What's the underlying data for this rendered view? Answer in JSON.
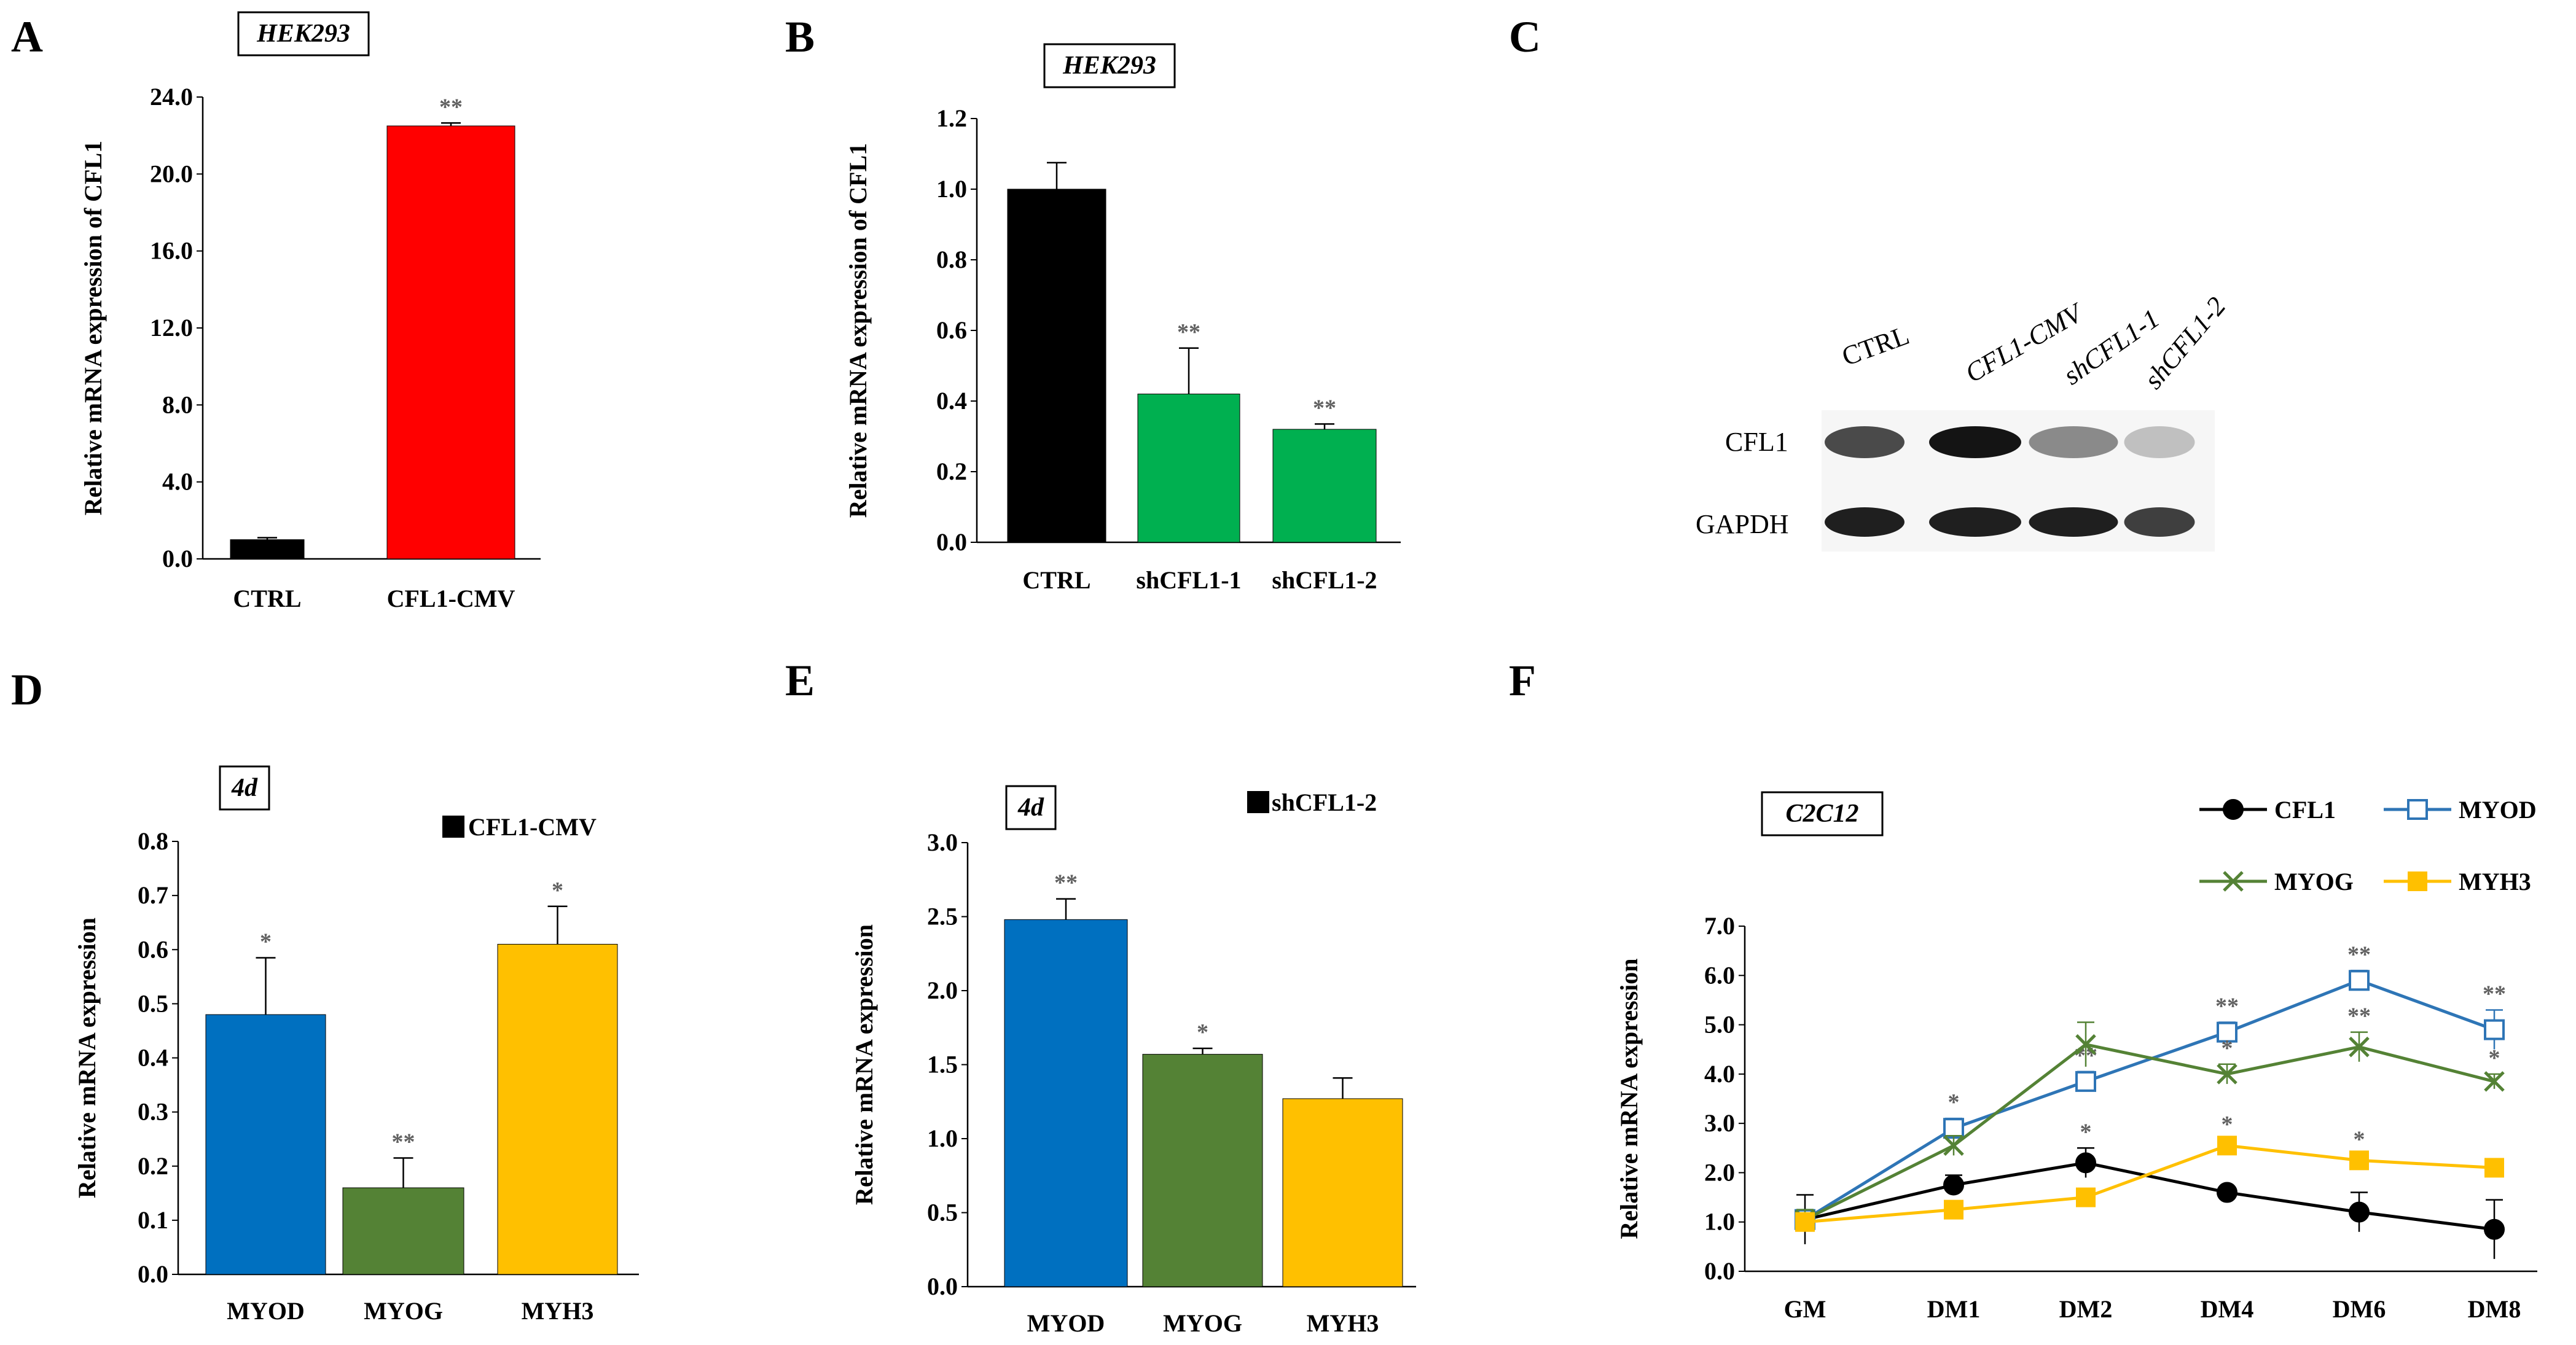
{
  "panels": {
    "A": {
      "letter": "A",
      "box_label": "HEK293"
    },
    "B": {
      "letter": "B",
      "box_label": "HEK293"
    },
    "C": {
      "letter": "C"
    },
    "D": {
      "letter": "D",
      "box_label": "4d",
      "legend": "CFL1-CMV"
    },
    "E": {
      "letter": "E",
      "box_label": "4d",
      "legend": "shCFL1-2"
    },
    "F": {
      "letter": "F",
      "box_label": "C2C12"
    }
  },
  "western_blot": {
    "lanes": [
      "CTRL",
      "CFL1-CMV",
      "shCFL1-1",
      "shCFL1-2"
    ],
    "rows": [
      "CFL1",
      "GAPDH"
    ],
    "cfl1_band_intensity": [
      0.75,
      1.0,
      0.45,
      0.2
    ],
    "gapdh_band_intensity": [
      0.95,
      0.95,
      0.95,
      0.8
    ]
  },
  "chart_data": [
    {
      "id": "A",
      "type": "bar",
      "title": "HEK293",
      "categories": [
        "CTRL",
        "CFL1-CMV"
      ],
      "values": [
        1.0,
        22.5
      ],
      "errors": [
        0.1,
        0.15
      ],
      "significance": [
        "",
        "**"
      ],
      "colors": [
        "#000000",
        "#ff0000"
      ],
      "ylabel": "Relative mRNA expression of CFL1",
      "ylim": [
        0,
        24
      ],
      "yticks": [
        0,
        4,
        8,
        12,
        16,
        20,
        24
      ],
      "ytick_labels": [
        "0.0",
        "4.0",
        "8.0",
        "12.0",
        "16.0",
        "20.0",
        "24.0"
      ]
    },
    {
      "id": "B",
      "type": "bar",
      "title": "HEK293",
      "categories": [
        "CTRL",
        "shCFL1-1",
        "shCFL1-2"
      ],
      "values": [
        1.0,
        0.42,
        0.32
      ],
      "errors": [
        0.075,
        0.13,
        0.015
      ],
      "significance": [
        "",
        "**",
        "**"
      ],
      "colors": [
        "#000000",
        "#00b050",
        "#00b050"
      ],
      "ylabel": "Relative mRNA expression of CFL1",
      "ylim": [
        0,
        1.2
      ],
      "yticks": [
        0,
        0.2,
        0.4,
        0.6,
        0.8,
        1.0,
        1.2
      ],
      "ytick_labels": [
        "0.0",
        "0.2",
        "0.4",
        "0.6",
        "0.8",
        "1.0",
        "1.2"
      ]
    },
    {
      "id": "D",
      "type": "bar",
      "title": "4d",
      "legend": [
        "CFL1-CMV"
      ],
      "categories": [
        "MYOD",
        "MYOG",
        "MYH3"
      ],
      "values": [
        0.48,
        0.16,
        0.61
      ],
      "errors": [
        0.105,
        0.055,
        0.07
      ],
      "significance": [
        "*",
        "**",
        "*"
      ],
      "colors": [
        "#0070c0",
        "#548235",
        "#ffc000"
      ],
      "ylabel": "Relative mRNA expression",
      "ylim": [
        0,
        0.8
      ],
      "yticks": [
        0,
        0.1,
        0.2,
        0.3,
        0.4,
        0.5,
        0.6,
        0.7,
        0.8
      ],
      "ytick_labels": [
        "0.0",
        "0.1",
        "0.2",
        "0.3",
        "0.4",
        "0.5",
        "0.6",
        "0.7",
        "0.8"
      ]
    },
    {
      "id": "E",
      "type": "bar",
      "title": "4d",
      "legend": [
        "shCFL1-2"
      ],
      "categories": [
        "MYOD",
        "MYOG",
        "MYH3"
      ],
      "values": [
        2.48,
        1.57,
        1.27
      ],
      "errors": [
        0.14,
        0.04,
        0.14
      ],
      "significance": [
        "**",
        "*",
        ""
      ],
      "colors": [
        "#0070c0",
        "#548235",
        "#ffc000"
      ],
      "ylabel": "Relative mRNA expression",
      "ylim": [
        0,
        3.0
      ],
      "yticks": [
        0,
        0.5,
        1.0,
        1.5,
        2.0,
        2.5,
        3.0
      ],
      "ytick_labels": [
        "0.0",
        "0.5",
        "1.0",
        "1.5",
        "2.0",
        "2.5",
        "3.0"
      ]
    },
    {
      "id": "F",
      "type": "line",
      "title": "C2C12",
      "x": [
        "GM",
        "DM1",
        "DM2",
        "DM4",
        "DM6",
        "DM8"
      ],
      "ylabel": "Relative mRNA expression",
      "ylim": [
        0,
        7
      ],
      "yticks": [
        0,
        1,
        2,
        3,
        4,
        5,
        6,
        7
      ],
      "ytick_labels": [
        "0.0",
        "1.0",
        "2.0",
        "3.0",
        "4.0",
        "5.0",
        "6.0",
        "7.0"
      ],
      "series": [
        {
          "name": "CFL1",
          "color": "#000000",
          "marker": "circle",
          "values": [
            1.05,
            1.75,
            2.2,
            1.6,
            1.2,
            0.85
          ],
          "errors": [
            0.5,
            0.2,
            0.3,
            0.1,
            0.4,
            0.6
          ],
          "significance": [
            "",
            "",
            "*",
            "",
            "",
            ""
          ]
        },
        {
          "name": "MYOD",
          "color": "#2e75b6",
          "marker": "open-square",
          "values": [
            1.05,
            2.9,
            3.85,
            4.85,
            5.9,
            4.9
          ],
          "errors": [
            0.2,
            0.2,
            0.2,
            0.2,
            0.2,
            0.4
          ],
          "significance": [
            "",
            "*",
            "**",
            "**",
            "**",
            "**"
          ]
        },
        {
          "name": "MYOG",
          "color": "#548235",
          "marker": "x",
          "values": [
            1.05,
            2.55,
            4.6,
            4.0,
            4.55,
            3.85
          ],
          "errors": [
            0.2,
            0.2,
            0.45,
            0.2,
            0.3,
            0.15
          ],
          "significance": [
            "",
            "",
            "",
            "*",
            "**",
            "*"
          ]
        },
        {
          "name": "MYH3",
          "color": "#ffc000",
          "marker": "square",
          "values": [
            1.0,
            1.25,
            1.5,
            2.55,
            2.25,
            2.1
          ],
          "errors": [
            0.1,
            0.1,
            0.1,
            0.1,
            0.1,
            0.1
          ],
          "significance": [
            "",
            "",
            "",
            "*",
            "*",
            ""
          ]
        }
      ]
    }
  ]
}
